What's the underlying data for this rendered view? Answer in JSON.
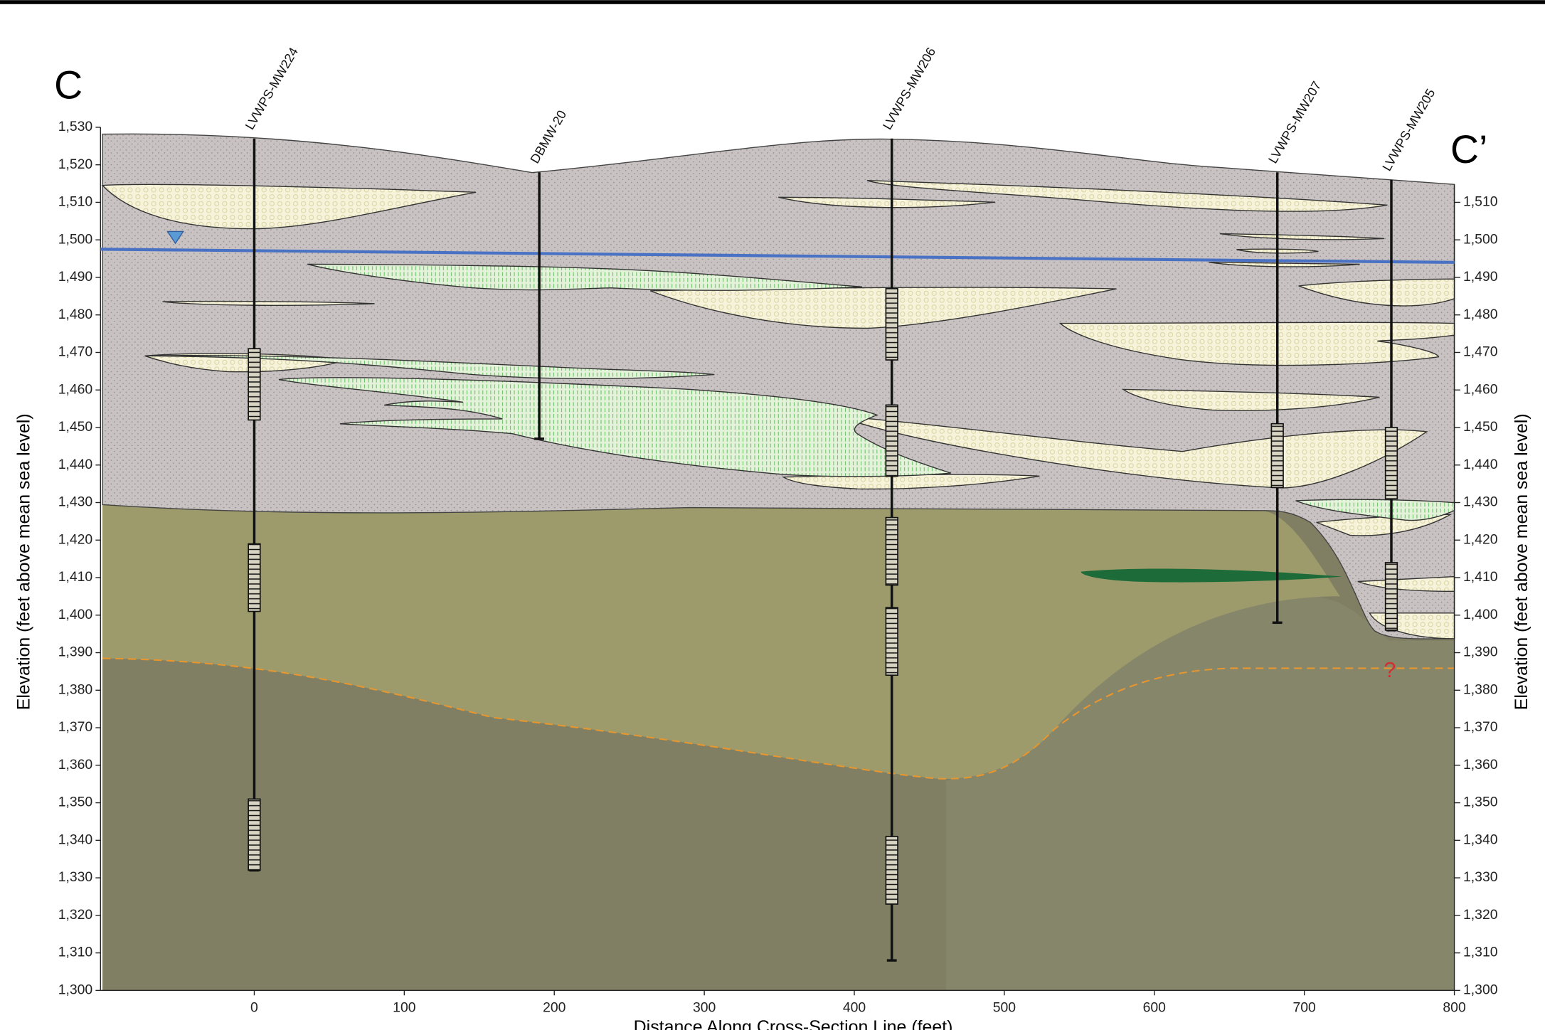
{
  "chart_data": {
    "type": "cross-section",
    "title": "C",
    "title_end": "C’",
    "xlabel": "Distance Along Cross-Section Line (feet)",
    "ylabel": "Elevation (feet above mean sea level)",
    "y2label": "Elevation (feet above mean sea level)",
    "xlim": [
      -102.5,
      800
    ],
    "xticks": [
      0,
      100,
      200,
      300,
      400,
      500,
      600,
      700,
      800
    ],
    "ylim": [
      1300,
      1530
    ],
    "yticks": [
      {
        "value": 1300,
        "label": "1,300"
      },
      {
        "value": 1310,
        "label": "1,310"
      },
      {
        "value": 1320,
        "label": "1,320"
      },
      {
        "value": 1330,
        "label": "1,330"
      },
      {
        "value": 1340,
        "label": "1,340"
      },
      {
        "value": 1350,
        "label": "1,350"
      },
      {
        "value": 1360,
        "label": "1,360"
      },
      {
        "value": 1370,
        "label": "1,370"
      },
      {
        "value": 1380,
        "label": "1,380"
      },
      {
        "value": 1390,
        "label": "1,390"
      },
      {
        "value": 1400,
        "label": "1,400"
      },
      {
        "value": 1410,
        "label": "1,410"
      },
      {
        "value": 1420,
        "label": "1,420"
      },
      {
        "value": 1430,
        "label": "1,430"
      },
      {
        "value": 1440,
        "label": "1,440"
      },
      {
        "value": 1450,
        "label": "1,450"
      },
      {
        "value": 1460,
        "label": "1,460"
      },
      {
        "value": 1470,
        "label": "1,470"
      },
      {
        "value": 1480,
        "label": "1,480"
      },
      {
        "value": 1490,
        "label": "1,490"
      },
      {
        "value": 1500,
        "label": "1,500"
      },
      {
        "value": 1510,
        "label": "1,510"
      },
      {
        "value": 1520,
        "label": "1,520"
      },
      {
        "value": 1530,
        "label": "1,530"
      }
    ],
    "y2lim": [
      1300,
      1530
    ],
    "y2ticks": [
      {
        "value": 1300,
        "label": "1,300"
      },
      {
        "value": 1310,
        "label": "1,310"
      },
      {
        "value": 1320,
        "label": "1,320"
      },
      {
        "value": 1330,
        "label": "1,330"
      },
      {
        "value": 1340,
        "label": "1,340"
      },
      {
        "value": 1350,
        "label": "1,350"
      },
      {
        "value": 1360,
        "label": "1,360"
      },
      {
        "value": 1370,
        "label": "1,370"
      },
      {
        "value": 1380,
        "label": "1,380"
      },
      {
        "value": 1390,
        "label": "1,390"
      },
      {
        "value": 1400,
        "label": "1,400"
      },
      {
        "value": 1410,
        "label": "1,410"
      },
      {
        "value": 1420,
        "label": "1,420"
      },
      {
        "value": 1430,
        "label": "1,430"
      },
      {
        "value": 1440,
        "label": "1,440"
      },
      {
        "value": 1450,
        "label": "1,450"
      },
      {
        "value": 1460,
        "label": "1,460"
      },
      {
        "value": 1470,
        "label": "1,470"
      },
      {
        "value": 1480,
        "label": "1,480"
      },
      {
        "value": 1490,
        "label": "1,490"
      },
      {
        "value": 1500,
        "label": "1,500"
      },
      {
        "value": 1510,
        "label": "1,510"
      }
    ],
    "water_table": {
      "x": [
        -102.5,
        800
      ],
      "values": [
        1497.5,
        1494
      ],
      "color": "#4a72c4"
    },
    "wells": [
      {
        "name": "LVWPS-MW224",
        "x": 0,
        "top": 1527,
        "bottom": 1332,
        "screens": [
          [
            1471,
            1452
          ],
          [
            1419,
            1401
          ],
          [
            1351,
            1332
          ]
        ]
      },
      {
        "name": "DBMW-20",
        "x": 190,
        "top": 1518,
        "bottom": 1447,
        "screens": []
      },
      {
        "name": "LVWPS-MW206",
        "x": 425,
        "top": 1527,
        "bottom": 1308,
        "screens": [
          [
            1487,
            1468
          ],
          [
            1456,
            1437
          ],
          [
            1426,
            1408
          ],
          [
            1402,
            1384
          ],
          [
            1341,
            1323
          ]
        ]
      },
      {
        "name": "LVWPS-MW207",
        "x": 682,
        "top": 1518,
        "bottom": 1398,
        "screens": [
          [
            1451,
            1434
          ]
        ]
      },
      {
        "name": "LVWPS-MW205",
        "x": 758,
        "top": 1516,
        "bottom": 1396,
        "screens": [
          [
            1450,
            1431
          ],
          [
            1414,
            1396
          ]
        ]
      }
    ],
    "annotations": [
      {
        "text": "?",
        "x": 757,
        "y": 1385,
        "color": "#d03030"
      }
    ]
  }
}
